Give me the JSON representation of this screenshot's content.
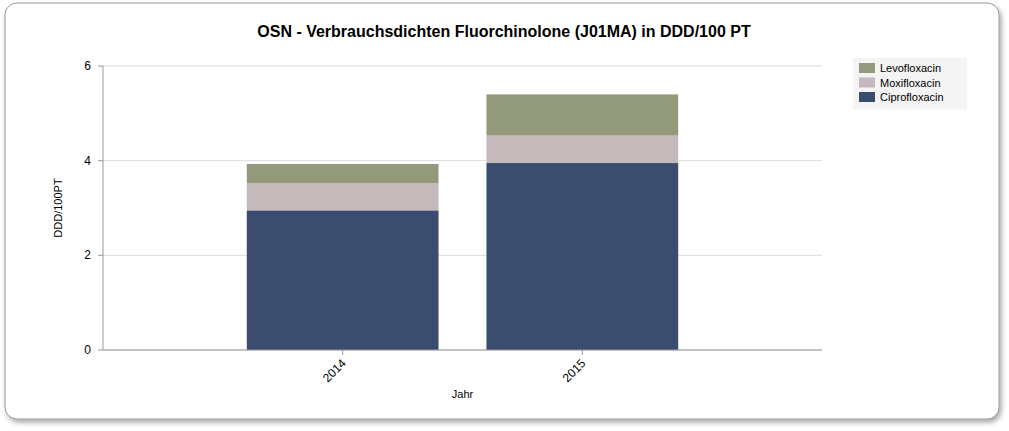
{
  "chart_data": {
    "type": "bar",
    "title": "OSN - Verbrauchsdichten Fluorchinolone (J01MA) in DDD/100 PT",
    "x_label": "Jahr",
    "y_label": "DDD/100PT",
    "categories": [
      "2014",
      "2015"
    ],
    "series": [
      {
        "name": "Ciprofloxacin",
        "color": "#3a4d6e",
        "values": [
          2.95,
          3.95
        ]
      },
      {
        "name": "Moxifloxacin",
        "color": "#c4b9bb",
        "values": [
          0.57,
          0.58
        ]
      },
      {
        "name": "Levofloxacin",
        "color": "#939a7b",
        "values": [
          0.41,
          0.87
        ]
      }
    ],
    "stacked": true,
    "ylim": [
      0,
      6
    ],
    "yticks": [
      0,
      2,
      4,
      6
    ],
    "grid": true,
    "legend": "right"
  }
}
